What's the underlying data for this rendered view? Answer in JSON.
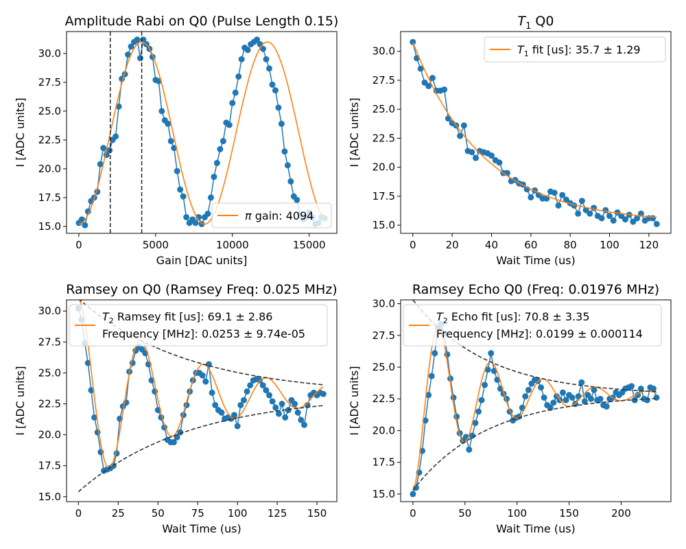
{
  "chart_data": [
    {
      "type": "scatter",
      "title": "Amplitude Rabi on Q0 (Pulse Length 0.15)",
      "xlabel": "Gain [DAC units]",
      "ylabel": "I [ADC units]",
      "xlim": [
        -800,
        16800
      ],
      "ylim": [
        14.4,
        31.9
      ],
      "xticks": [
        0,
        5000,
        10000,
        15000
      ],
      "yticks": [
        15.0,
        17.5,
        20.0,
        22.5,
        25.0,
        27.5,
        30.0
      ],
      "ytick_labels": [
        "15.0",
        "17.5",
        "20.0",
        "22.5",
        "25.0",
        "27.5",
        "30.0"
      ],
      "grid": false,
      "legend_position": "lower-right",
      "legend": [
        {
          "name": "π gain: 4094",
          "color": "#ff7f0e",
          "style": "line"
        }
      ],
      "vlines": [
        2047,
        4094
      ],
      "data_color": "#1f77b4",
      "fit_color": "#ff7f0e",
      "fit": {
        "kind": "sine",
        "offset": 23.1,
        "amp": 7.9,
        "period": 8188,
        "phase_peak": 4094
      },
      "data_x": [
        0,
        200,
        400,
        600,
        800,
        1000,
        1200,
        1400,
        1600,
        1800,
        2000,
        2200,
        2400,
        2600,
        2800,
        3000,
        3200,
        3400,
        3600,
        3800,
        4000,
        4200,
        4400,
        4600,
        4800,
        5000,
        5200,
        5400,
        5600,
        5800,
        6000,
        6200,
        6400,
        6600,
        6800,
        7000,
        7200,
        7400,
        7600,
        7800,
        8000,
        8200,
        8400,
        8600,
        8800,
        9000,
        9200,
        9400,
        9600,
        9800,
        10000,
        10200,
        10400,
        10600,
        10800,
        11000,
        11200,
        11400,
        11600,
        11800,
        12000,
        12200,
        12400,
        12600,
        12800,
        13000,
        13200,
        13400,
        13600,
        13800,
        14000,
        14200,
        14400,
        14600,
        14800,
        15000,
        15200,
        15400,
        15600,
        15800,
        16000
      ],
      "data_y": [
        15.3,
        15.6,
        15.1,
        16.3,
        17.2,
        17.5,
        18.0,
        20.4,
        21.8,
        21.2,
        21.6,
        22.5,
        22.8,
        25.4,
        27.8,
        28.2,
        29.9,
        30.6,
        31.0,
        31.2,
        29.6,
        31.2,
        30.8,
        30.4,
        29.7,
        27.7,
        27.6,
        25.0,
        24.2,
        23.9,
        22.4,
        21.8,
        19.8,
        18.2,
        17.6,
        15.8,
        15.3,
        15.6,
        15.3,
        15.8,
        15.2,
        15.8,
        16.1,
        17.5,
        19.3,
        20.5,
        21.7,
        22.4,
        24.0,
        23.8,
        25.7,
        26.6,
        28.0,
        29.5,
        30.5,
        30.3,
        30.8,
        31.0,
        31.2,
        30.8,
        30.4,
        29.5,
        28.7,
        27.3,
        26.8,
        25.3,
        23.9,
        21.5,
        20.3,
        18.9,
        17.6,
        17.3,
        16.0,
        15.6,
        15.8,
        16.2,
        15.8,
        15.2,
        15.3,
        15.8,
        15.7
      ]
    },
    {
      "type": "scatter",
      "title_prefix": "T",
      "title_sub": "1",
      "title_suffix": " Q0",
      "xlabel": "Wait Time (us)",
      "ylabel": "I [ADC units]",
      "xlim": [
        -6.2,
        131.2
      ],
      "ylim": [
        14.3,
        31.7
      ],
      "xticks": [
        0,
        20,
        40,
        60,
        80,
        100,
        120
      ],
      "yticks": [
        15.0,
        17.5,
        20.0,
        22.5,
        25.0,
        27.5,
        30.0
      ],
      "ytick_labels": [
        "15.0",
        "17.5",
        "20.0",
        "22.5",
        "25.0",
        "27.5",
        "30.0"
      ],
      "grid": false,
      "legend_position": "upper-right",
      "legend": [
        {
          "prefix": "T",
          "sub": "1",
          "suffix": " fit [us]: 35.7 ± 1.29",
          "color": "#ff7f0e",
          "style": "line"
        }
      ],
      "data_color": "#1f77b4",
      "fit_color": "#ff7f0e",
      "fit": {
        "kind": "exp",
        "y0": 30.8,
        "yinf": 15.2,
        "tau": 35.7
      },
      "data_x": [
        0,
        2,
        4,
        6,
        8,
        10,
        12,
        14,
        16,
        18,
        20,
        22,
        24,
        26,
        28,
        30,
        32,
        34,
        36,
        38,
        40,
        42,
        44,
        46,
        48,
        50,
        52,
        54,
        56,
        58,
        60,
        62,
        64,
        66,
        68,
        70,
        72,
        74,
        76,
        78,
        80,
        82,
        84,
        86,
        88,
        90,
        92,
        94,
        96,
        98,
        100,
        102,
        104,
        106,
        108,
        110,
        112,
        114,
        116,
        118,
        120,
        122,
        124
      ],
      "data_y": [
        30.8,
        29.4,
        28.5,
        27.3,
        27.0,
        27.7,
        26.6,
        26.6,
        26.7,
        24.2,
        23.8,
        23.6,
        22.7,
        23.6,
        21.4,
        21.3,
        20.8,
        21.4,
        21.3,
        21.2,
        21.0,
        20.6,
        20.4,
        19.5,
        19.5,
        18.8,
        18.9,
        18.6,
        18.5,
        18.1,
        17.4,
        18.0,
        17.6,
        17.3,
        17.3,
        17.9,
        17.8,
        16.7,
        17.6,
        17.2,
        16.9,
        16.7,
        16.0,
        17.1,
        16.3,
        16.0,
        16.5,
        15.8,
        15.6,
        16.3,
        15.8,
        15.4,
        16.1,
        15.8,
        15.5,
        15.9,
        15.3,
        15.6,
        16.0,
        15.4,
        15.6,
        15.6,
        15.1
      ]
    },
    {
      "type": "scatter",
      "title": "Ramsey on Q0 (Ramsey Freq: 0.025 MHz)",
      "xlabel": "Wait Time (us)",
      "ylabel": "I [ADC units]",
      "xlim": [
        -7.5,
        162.5
      ],
      "ylim": [
        14.6,
        30.9
      ],
      "xticks": [
        0,
        25,
        50,
        75,
        100,
        125,
        150
      ],
      "yticks": [
        15.0,
        17.5,
        20.0,
        22.5,
        25.0,
        27.5,
        30.0
      ],
      "ytick_labels": [
        "15.0",
        "17.5",
        "20.0",
        "22.5",
        "25.0",
        "27.5",
        "30.0"
      ],
      "grid": false,
      "legend_position": "upper-center",
      "legend": [
        {
          "prefix": "T",
          "sub": "2",
          "suffix": " Ramsey fit [us]: 69.1 ± 2.86",
          "line2": "Frequency [MHz]: 0.0253 ± 9.74e-05",
          "color": "#ff7f0e",
          "style": "line"
        }
      ],
      "data_color": "#1f77b4",
      "fit_color": "#ff7f0e",
      "envelope_color": "#333333",
      "fit": {
        "kind": "decay-cos",
        "offset": 23.2,
        "amp": 7.8,
        "tau": 69.1,
        "freq": 0.0253,
        "x0": 0
      },
      "data_x": [
        0,
        2,
        4,
        6,
        8,
        10,
        12,
        14,
        16,
        18,
        20,
        22,
        24,
        26,
        28,
        30,
        32,
        34,
        36,
        38,
        40,
        42,
        44,
        46,
        48,
        50,
        52,
        54,
        56,
        58,
        60,
        62,
        64,
        66,
        68,
        70,
        72,
        74,
        76,
        78,
        80,
        82,
        84,
        86,
        88,
        90,
        92,
        94,
        96,
        98,
        100,
        102,
        104,
        106,
        108,
        110,
        112,
        114,
        116,
        118,
        120,
        122,
        124,
        126,
        128,
        130,
        132,
        134,
        136,
        138,
        140,
        142,
        144,
        146,
        148,
        150,
        152,
        154
      ],
      "data_y": [
        30.2,
        29.3,
        27.4,
        25.8,
        23.6,
        21.4,
        20.2,
        18.6,
        17.1,
        17.2,
        17.3,
        17.5,
        18.5,
        21.3,
        22.3,
        22.6,
        25.1,
        25.8,
        26.8,
        27.1,
        26.9,
        26.6,
        25.7,
        24.4,
        23.5,
        22.0,
        21.4,
        20.6,
        19.6,
        19.4,
        19.4,
        19.8,
        20.2,
        21.6,
        22.4,
        23.5,
        24.4,
        25.0,
        25.0,
        24.8,
        24.3,
        25.7,
        23.4,
        22.4,
        22.0,
        21.8,
        21.3,
        21.4,
        21.3,
        21.6,
        20.7,
        22.4,
        22.8,
        23.5,
        24.0,
        24.4,
        24.5,
        24.4,
        24.0,
        23.6,
        23.2,
        22.7,
        22.2,
        21.7,
        22.5,
        21.4,
        22.0,
        22.8,
        22.5,
        21.8,
        21.2,
        20.8,
        22.4,
        23.2,
        23.4,
        23.2,
        23.4,
        23.3
      ]
    },
    {
      "type": "scatter",
      "title": "Ramsey Echo Q0 (Freq: 0.01976 MHz)",
      "xlabel": "Wait Time (us)",
      "ylabel": "I [ADC units]",
      "xlim": [
        -11.8,
        247.8
      ],
      "ylim": [
        14.4,
        30.3
      ],
      "xticks": [
        0,
        50,
        100,
        150,
        200
      ],
      "yticks": [
        15.0,
        17.5,
        20.0,
        22.5,
        25.0,
        27.5,
        30.0
      ],
      "ytick_labels": [
        "15.0",
        "17.5",
        "20.0",
        "22.5",
        "25.0",
        "27.5",
        "30.0"
      ],
      "grid": false,
      "legend_position": "upper-center",
      "legend": [
        {
          "prefix": "T",
          "sub": "2",
          "suffix": " Echo fit [us]: 70.8 ± 3.35",
          "line2": "Frequency [MHz]: 0.0199 ± 0.000114",
          "color": "#ff7f0e",
          "style": "line"
        }
      ],
      "data_color": "#1f77b4",
      "fit_color": "#ff7f0e",
      "envelope_color": "#333333",
      "fit": {
        "kind": "decay-cos",
        "offset": 22.8,
        "amp": -7.5,
        "tau": 70.8,
        "freq": 0.0199,
        "x0": 0
      },
      "data_x": [
        0,
        3,
        6,
        9,
        12,
        15,
        18,
        21,
        24,
        27,
        30,
        33,
        36,
        39,
        42,
        45,
        48,
        51,
        54,
        57,
        60,
        63,
        66,
        69,
        72,
        75,
        78,
        81,
        84,
        87,
        90,
        93,
        96,
        99,
        102,
        105,
        108,
        111,
        114,
        117,
        120,
        123,
        126,
        129,
        132,
        135,
        138,
        141,
        144,
        147,
        150,
        153,
        156,
        159,
        162,
        165,
        168,
        171,
        174,
        177,
        180,
        183,
        186,
        189,
        192,
        195,
        198,
        201,
        204,
        207,
        210,
        213,
        216,
        219,
        222,
        225,
        228,
        231,
        234
      ],
      "data_y": [
        15.0,
        15.5,
        16.7,
        18.4,
        20.8,
        22.8,
        24.3,
        26.1,
        28.1,
        28.4,
        27.6,
        26.0,
        24.1,
        22.6,
        21.1,
        19.8,
        19.2,
        19.5,
        18.5,
        19.6,
        20.6,
        21.5,
        22.4,
        23.6,
        24.8,
        26.1,
        24.7,
        24.0,
        23.3,
        22.9,
        22.5,
        21.5,
        20.8,
        21.0,
        21.1,
        21.8,
        22.7,
        23.2,
        23.7,
        24.0,
        23.9,
        23.4,
        22.6,
        22.0,
        21.8,
        22.2,
        22.7,
        22.4,
        23.0,
        22.4,
        22.8,
        22.6,
        22.1,
        22.7,
        23.8,
        22.3,
        22.8,
        22.5,
        23.2,
        22.4,
        22.5,
        22.0,
        21.9,
        22.5,
        22.6,
        23.0,
        22.8,
        23.0,
        23.3,
        23.4,
        23.5,
        22.4,
        22.8,
        23.3,
        22.5,
        22.4,
        23.4,
        23.3,
        22.6
      ]
    }
  ]
}
